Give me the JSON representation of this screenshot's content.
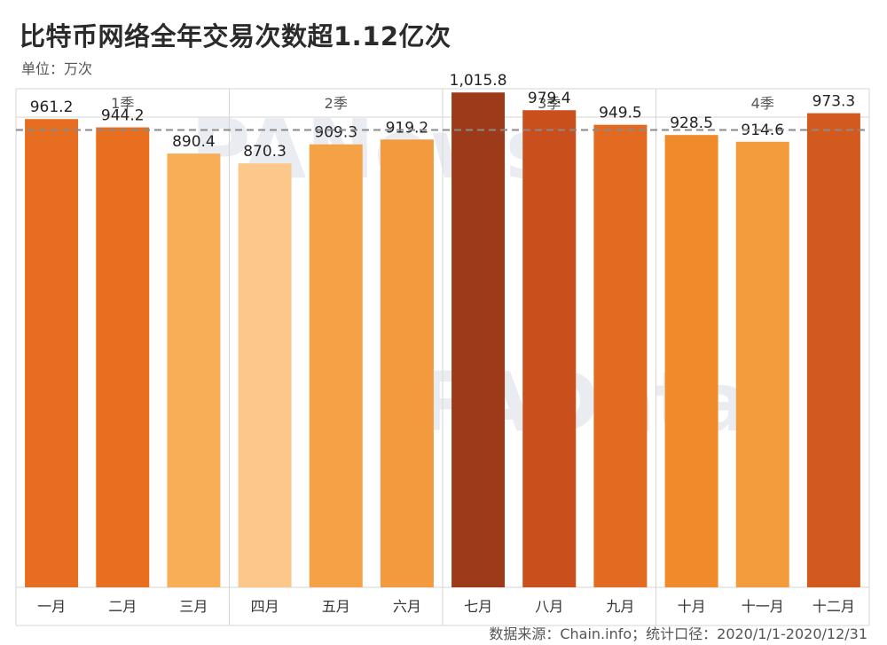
{
  "title": "比特币网络全年交易次数超1.12亿次",
  "unit": "单位：万次",
  "source": "数据来源：Chain.info；统计口径：2020/1/1-2020/12/31",
  "watermarks": [
    "PANews",
    "PAData"
  ],
  "chart_data": {
    "type": "bar",
    "categories": [
      "一月",
      "二月",
      "三月",
      "四月",
      "五月",
      "六月",
      "七月",
      "八月",
      "九月",
      "十月",
      "十一月",
      "十二月"
    ],
    "values": [
      961.2,
      944.2,
      890.4,
      870.3,
      909.3,
      919.2,
      1015.8,
      979.4,
      949.5,
      928.5,
      914.6,
      973.3
    ],
    "value_labels": [
      "961.2",
      "944.2",
      "890.4",
      "870.3",
      "909.3",
      "919.2",
      "1,015.8",
      "979.4",
      "949.5",
      "928.5",
      "914.6",
      "973.3"
    ],
    "groups": [
      {
        "label": "1季",
        "count": 3
      },
      {
        "label": "2季",
        "count": 3
      },
      {
        "label": "3季",
        "count": 3
      },
      {
        "label": "4季",
        "count": 3
      }
    ],
    "reference_line": 938.8,
    "ylim": [
      0,
      1100
    ],
    "color_scale": {
      "low": "#fcc78a",
      "high": "#9c3a1a"
    },
    "colors": [
      "#e76d20",
      "#e86f20",
      "#f8ad57",
      "#fcc78a",
      "#f5a145",
      "#f29a3d",
      "#9c3a1a",
      "#c9501c",
      "#e26a21",
      "#ef8b2b",
      "#f39c3d",
      "#d25a1e"
    ],
    "grid": false,
    "legend": "none"
  }
}
